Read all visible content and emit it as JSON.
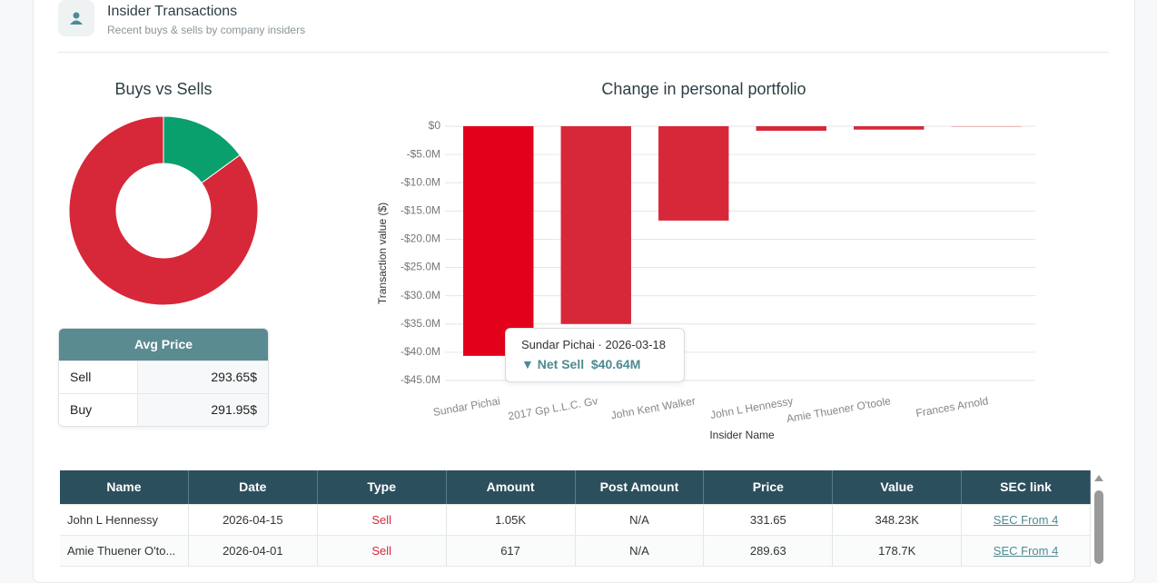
{
  "header": {
    "title": "Insider Transactions",
    "subtitle": "Recent buys & sells by company insiders"
  },
  "chart_data": [
    {
      "type": "pie",
      "title": "Buys vs Sells",
      "donut": true,
      "values": [
        15,
        85
      ],
      "colors": [
        "#0aa06e",
        "#d62839"
      ]
    },
    {
      "type": "bar",
      "title": "Change in personal portfolio",
      "y_label": "Transaction value ($)",
      "x_label": "Insider Name",
      "categories": [
        "Sundar Pichai",
        "2017 Gp L.L.C. Gv",
        "John Kent Walker",
        "John L Hennessy",
        "Amie Thuener O'toole",
        "Frances Arnold"
      ],
      "values": [
        -40640000,
        -35000000,
        -16700000,
        -800000,
        -600000,
        -50000
      ],
      "colors": [
        "#e3001b",
        "#d62839",
        "#d62839",
        "#d62839",
        "#d62839",
        "#d62839"
      ],
      "ylim": [
        -45000000,
        0
      ],
      "yticks": [
        {
          "value": 0,
          "label": "$0"
        },
        {
          "value": -5000000,
          "label": "-$5.0M"
        },
        {
          "value": -10000000,
          "label": "-$10.0M"
        },
        {
          "value": -15000000,
          "label": "-$15.0M"
        },
        {
          "value": -20000000,
          "label": "-$20.0M"
        },
        {
          "value": -25000000,
          "label": "-$25.0M"
        },
        {
          "value": -30000000,
          "label": "-$30.0M"
        },
        {
          "value": -35000000,
          "label": "-$35.0M"
        },
        {
          "value": -40000000,
          "label": "-$40.0M"
        },
        {
          "value": -45000000,
          "label": "-$45.0M"
        }
      ],
      "grid": true,
      "tooltip": {
        "heading": "Sundar Pichai · 2026-03-18",
        "label": "Net Sell",
        "value": "$40.64M"
      }
    }
  ],
  "avg_price": {
    "header": "Avg Price",
    "rows": [
      [
        "Sell",
        "293.65$"
      ],
      [
        "Buy",
        "291.95$"
      ]
    ]
  },
  "transactions": {
    "columns": [
      "Name",
      "Date",
      "Type",
      "Amount",
      "Post Amount",
      "Price",
      "Value",
      "SEC link"
    ],
    "rows": [
      [
        "John L Hennessy",
        "2026-04-15",
        "Sell",
        "1.05K",
        "N/A",
        "331.65",
        "348.23K",
        "SEC From 4"
      ],
      [
        "Amie Thuener O'to...",
        "2026-04-01",
        "Sell",
        "617",
        "N/A",
        "289.63",
        "178.7K",
        "SEC From 4"
      ]
    ]
  }
}
